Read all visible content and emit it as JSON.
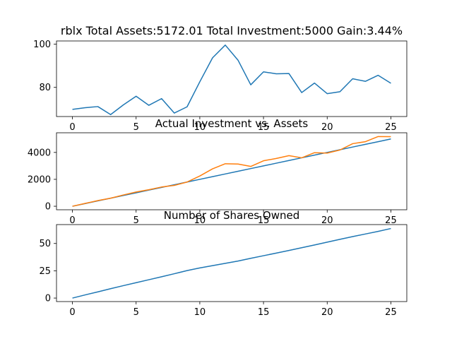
{
  "figure": {
    "title": "rblx Total Assets:5172.01  Total Investment:5000  Gain:3.44%"
  },
  "chart_data": [
    {
      "type": "line",
      "title": "",
      "xlabel": "",
      "ylabel": "",
      "xlim": [
        -1.25,
        26.25
      ],
      "ylim": [
        66.5,
        101.5
      ],
      "x_ticks": [
        0,
        5,
        10,
        15,
        20,
        25
      ],
      "y_ticks": [
        80,
        100
      ],
      "grid": false,
      "series": [
        {
          "name": "",
          "color": "#1f77b4",
          "x": [
            0,
            1,
            2,
            3,
            4,
            5,
            6,
            7,
            8,
            9,
            10,
            11,
            12,
            13,
            14,
            15,
            16,
            17,
            18,
            19,
            20,
            21,
            22,
            23,
            24,
            25
          ],
          "values": [
            69.8,
            70.6,
            71.1,
            67.4,
            71.9,
            75.9,
            71.7,
            74.8,
            68.1,
            71.0,
            82.6,
            93.7,
            99.6,
            92.6,
            81.2,
            87.2,
            86.3,
            86.4,
            77.6,
            82.0,
            77.1,
            78.0,
            84.0,
            82.8,
            85.6,
            81.9
          ]
        }
      ]
    },
    {
      "type": "line",
      "title": "Actual Investment vs. Assets",
      "xlabel": "",
      "ylabel": "",
      "xlim": [
        -1.25,
        26.25
      ],
      "ylim": [
        -260,
        5460
      ],
      "x_ticks": [
        0,
        5,
        10,
        15,
        20,
        25
      ],
      "y_ticks": [
        0,
        2000,
        4000
      ],
      "grid": false,
      "series": [
        {
          "name": "",
          "color": "#1f77b4",
          "x": [
            0,
            1,
            2,
            3,
            4,
            5,
            6,
            7,
            8,
            9,
            10,
            11,
            12,
            13,
            14,
            15,
            16,
            17,
            18,
            19,
            20,
            21,
            22,
            23,
            24,
            25
          ],
          "values": [
            0,
            200,
            400,
            600,
            800,
            1000,
            1200,
            1400,
            1600,
            1800,
            2000,
            2200,
            2400,
            2600,
            2800,
            3000,
            3200,
            3400,
            3600,
            3800,
            4000,
            4200,
            4400,
            4600,
            4800,
            5000
          ]
        },
        {
          "name": "",
          "color": "#ff7f0e",
          "x": [
            0,
            1,
            2,
            3,
            4,
            5,
            6,
            7,
            8,
            9,
            10,
            11,
            12,
            13,
            14,
            15,
            16,
            17,
            18,
            19,
            20,
            21,
            22,
            23,
            24,
            25
          ],
          "values": [
            0,
            210,
            420,
            600,
            840,
            1060,
            1230,
            1430,
            1550,
            1800,
            2250,
            2780,
            3160,
            3140,
            2960,
            3380,
            3550,
            3760,
            3600,
            3980,
            3950,
            4180,
            4650,
            4800,
            5180,
            5172
          ]
        }
      ]
    },
    {
      "type": "line",
      "title": "Number of Shares Owned",
      "xlabel": "",
      "ylabel": "",
      "xlim": [
        -1.25,
        26.25
      ],
      "ylim": [
        -3.2,
        67.3
      ],
      "x_ticks": [
        0,
        5,
        10,
        15,
        20,
        25
      ],
      "y_ticks": [
        0,
        25,
        50
      ],
      "grid": false,
      "series": [
        {
          "name": "",
          "color": "#1f77b4",
          "x": [
            0,
            1,
            2,
            3,
            4,
            5,
            6,
            7,
            8,
            9,
            10,
            11,
            12,
            13,
            14,
            15,
            16,
            17,
            18,
            19,
            20,
            21,
            22,
            23,
            24,
            25
          ],
          "values": [
            0,
            2.9,
            5.7,
            8.6,
            11.4,
            14.1,
            16.8,
            19.5,
            22.3,
            25.2,
            27.6,
            29.7,
            31.8,
            33.9,
            36.4,
            38.8,
            41.2,
            43.6,
            46.1,
            48.6,
            51.2,
            53.8,
            56.3,
            58.7,
            61.1,
            63.7
          ]
        }
      ]
    }
  ]
}
